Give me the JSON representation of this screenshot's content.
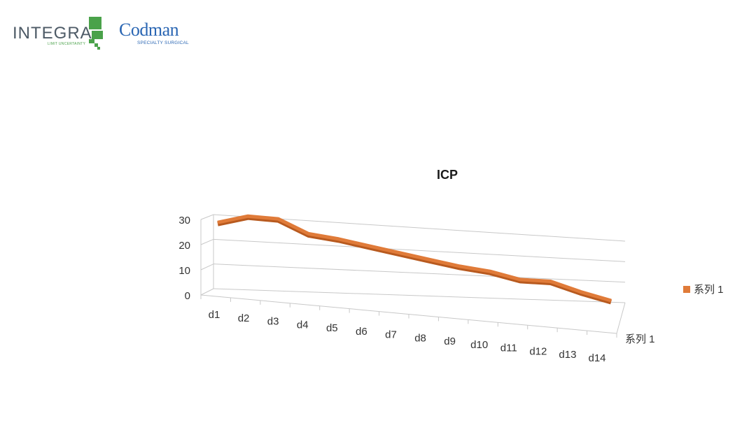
{
  "header": {
    "integra_logo": {
      "word": "INTEGRA",
      "tagline": "LIMIT UNCERTAINTY"
    },
    "codman_logo": {
      "word": "Codman",
      "tagline": "SPECIALTY SURGICAL"
    }
  },
  "chart_data": {
    "type": "line",
    "title": "ICP",
    "categories": [
      "d1",
      "d2",
      "d3",
      "d4",
      "d5",
      "d6",
      "d7",
      "d8",
      "d9",
      "d10",
      "d11",
      "d12",
      "d13",
      "d14"
    ],
    "series": [
      {
        "name": "系列 1",
        "values": [
          19,
          25,
          26,
          20,
          19.5,
          18,
          16.5,
          15,
          13.5,
          13,
          10.5,
          12,
          8,
          5
        ]
      }
    ],
    "depth_axis_label": "系列 1",
    "yticks": [
      0,
      10,
      20,
      30
    ],
    "ylim": [
      0,
      30
    ],
    "grid": true,
    "legend": {
      "position": "right",
      "label": "系列 1"
    },
    "colors": {
      "series": "#e07b39",
      "series_shadow": "#b85a1f",
      "grid": "#c8c8c8"
    }
  }
}
